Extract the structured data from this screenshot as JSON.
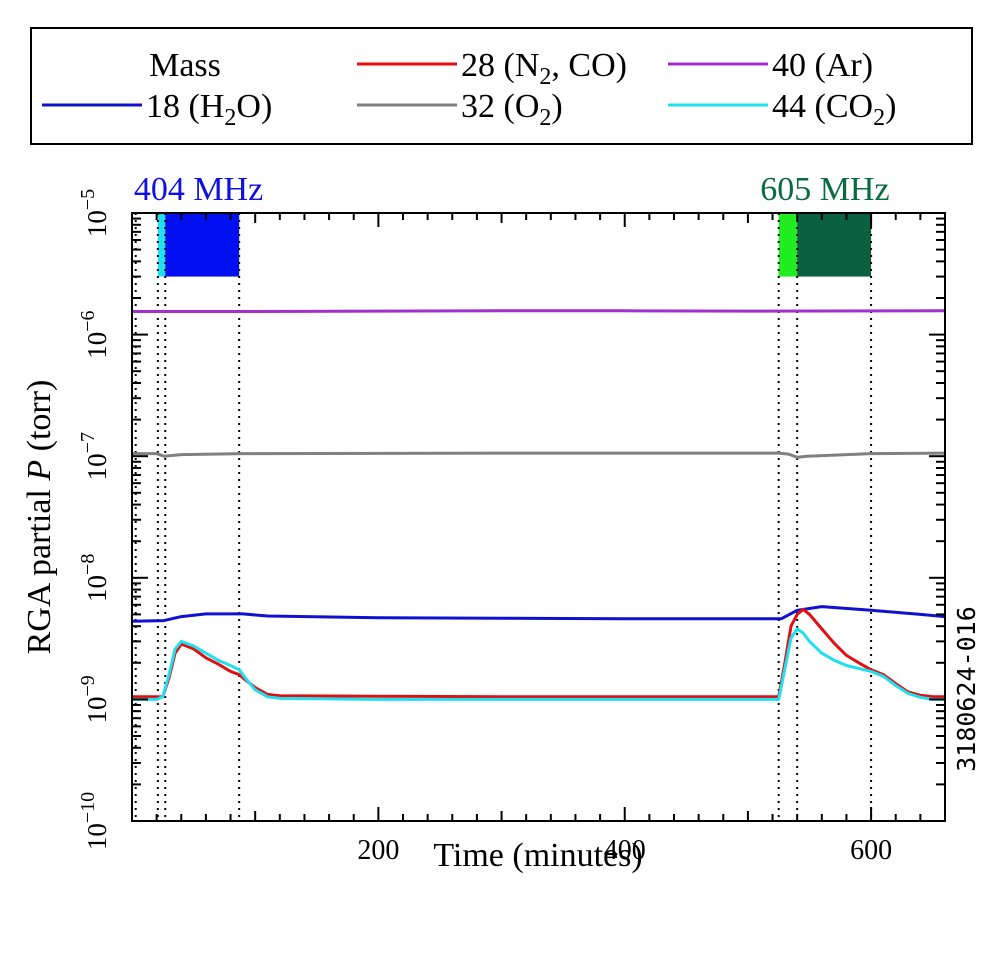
{
  "chart_data": {
    "type": "line",
    "figure_id": "3180624-016",
    "xlabel": "Time (minutes)",
    "ylabel_prefix": "RGA partial ",
    "ylabel_var": "P",
    "ylabel_suffix": " (torr)",
    "y_scale": "log",
    "xlim": [
      0,
      660
    ],
    "ylim": [
      1e-10,
      1e-05
    ],
    "x_ticks": [
      200,
      400,
      600
    ],
    "x_tick_labels": [
      "200",
      "400",
      "600"
    ],
    "y_ticks": [
      {
        "value": 1e-10,
        "base": "10",
        "exp": "−10"
      },
      {
        "value": 1e-09,
        "base": "10",
        "exp": "−9"
      },
      {
        "value": 1e-08,
        "base": "10",
        "exp": "−8"
      },
      {
        "value": 1e-07,
        "base": "10",
        "exp": "−7"
      },
      {
        "value": 1e-06,
        "base": "10",
        "exp": "−6"
      },
      {
        "value": 1e-05,
        "base": "10",
        "exp": "−5"
      }
    ],
    "legend": {
      "title": "Mass",
      "placement": "top, outside plot",
      "entries": [
        {
          "text": "18 (H",
          "sub": "2",
          "tail": "O)",
          "color": "#1010d0"
        },
        {
          "text": "28 (N",
          "sub": "2",
          "tail": ", CO)",
          "color": "#e01010"
        },
        {
          "text": "32 (O",
          "sub": "2",
          "tail": ")",
          "color": "#808080"
        },
        {
          "text": "40 (Ar)",
          "sub": "",
          "tail": "",
          "color": "#a030d0"
        },
        {
          "text": "44 (CO",
          "sub": "2",
          "tail": ")",
          "color": "#20e0f0"
        }
      ]
    },
    "rf_bands": [
      {
        "label": "404 MHz",
        "label_color": "#1010e0",
        "segments": [
          {
            "x0": 21,
            "x1": 27,
            "color": "#20e0f0"
          },
          {
            "x0": 27,
            "x1": 87,
            "color": "#0010f0"
          }
        ]
      },
      {
        "label": "605 MHz",
        "label_color": "#0a6a40",
        "segments": [
          {
            "x0": 525,
            "x1": 540,
            "color": "#20ee20"
          },
          {
            "x0": 540,
            "x1": 600,
            "color": "#0a6040"
          }
        ]
      }
    ],
    "band_ylim": [
      3e-06,
      1e-05
    ],
    "vlines": [
      3,
      21,
      27,
      87,
      525,
      540,
      600
    ],
    "series": [
      {
        "name": "40 (Ar)",
        "color": "#a030d0",
        "x": [
          0,
          100,
          200,
          300,
          400,
          500,
          660
        ],
        "y": [
          1.55e-06,
          1.55e-06,
          1.56e-06,
          1.57e-06,
          1.57e-06,
          1.56e-06,
          1.57e-06
        ]
      },
      {
        "name": "32 (O2)",
        "color": "#808080",
        "x": [
          0,
          20,
          26,
          40,
          90,
          300,
          525,
          533,
          540,
          548,
          600,
          660
        ],
        "y": [
          1.05e-07,
          1.05e-07,
          1e-07,
          1.03e-07,
          1.05e-07,
          1.06e-07,
          1.06e-07,
          1.04e-07,
          9.8e-08,
          1e-07,
          1.05e-07,
          1.06e-07
        ]
      },
      {
        "name": "18 (H2O)",
        "color": "#1010d0",
        "x": [
          0,
          26,
          40,
          60,
          90,
          110,
          200,
          300,
          400,
          527,
          540,
          560,
          600,
          640,
          660
        ],
        "y": [
          4.4e-09,
          4.45e-09,
          4.8e-09,
          5.05e-09,
          5.05e-09,
          4.85e-09,
          4.7e-09,
          4.65e-09,
          4.6e-09,
          4.6e-09,
          5.4e-09,
          5.8e-09,
          5.4e-09,
          5e-09,
          4.8e-09
        ]
      },
      {
        "name": "28 (N2, CO)",
        "color": "#e01010",
        "x": [
          0,
          20,
          25,
          30,
          35,
          40,
          50,
          60,
          70,
          80,
          87,
          92,
          100,
          110,
          120,
          200,
          300,
          400,
          500,
          525,
          530,
          535,
          540,
          545,
          550,
          560,
          570,
          580,
          590,
          600,
          610,
          620,
          630,
          640,
          650,
          660
        ],
        "y": [
          1.05e-09,
          1.05e-09,
          1.05e-09,
          1.5e-09,
          2.4e-09,
          2.85e-09,
          2.6e-09,
          2.2e-09,
          1.95e-09,
          1.7e-09,
          1.6e-09,
          1.45e-09,
          1.25e-09,
          1.1e-09,
          1.07e-09,
          1.06e-09,
          1.05e-09,
          1.05e-09,
          1.05e-09,
          1.05e-09,
          2e-09,
          4e-09,
          5e-09,
          5.5e-09,
          5e-09,
          3.8e-09,
          2.9e-09,
          2.3e-09,
          2e-09,
          1.75e-09,
          1.6e-09,
          1.35e-09,
          1.15e-09,
          1.08e-09,
          1.05e-09,
          1.05e-09
        ]
      },
      {
        "name": "44 (CO2)",
        "color": "#20e0f0",
        "x": [
          0,
          20,
          25,
          30,
          35,
          40,
          50,
          60,
          70,
          80,
          87,
          92,
          100,
          110,
          120,
          200,
          300,
          400,
          500,
          525,
          530,
          535,
          540,
          545,
          550,
          560,
          570,
          580,
          590,
          600,
          610,
          620,
          630,
          640,
          650,
          660
        ],
        "y": [
          1e-09,
          1e-09,
          1.05e-09,
          1.6e-09,
          2.6e-09,
          3e-09,
          2.75e-09,
          2.4e-09,
          2.1e-09,
          1.9e-09,
          1.75e-09,
          1.5e-09,
          1.2e-09,
          1.05e-09,
          1.02e-09,
          1e-09,
          1e-09,
          1e-09,
          1e-09,
          1e-09,
          1.8e-09,
          3.2e-09,
          3.8e-09,
          3.5e-09,
          3e-09,
          2.4e-09,
          2.1e-09,
          1.9e-09,
          1.8e-09,
          1.7e-09,
          1.55e-09,
          1.3e-09,
          1.12e-09,
          1.04e-09,
          1e-09,
          1e-09
        ]
      }
    ]
  }
}
